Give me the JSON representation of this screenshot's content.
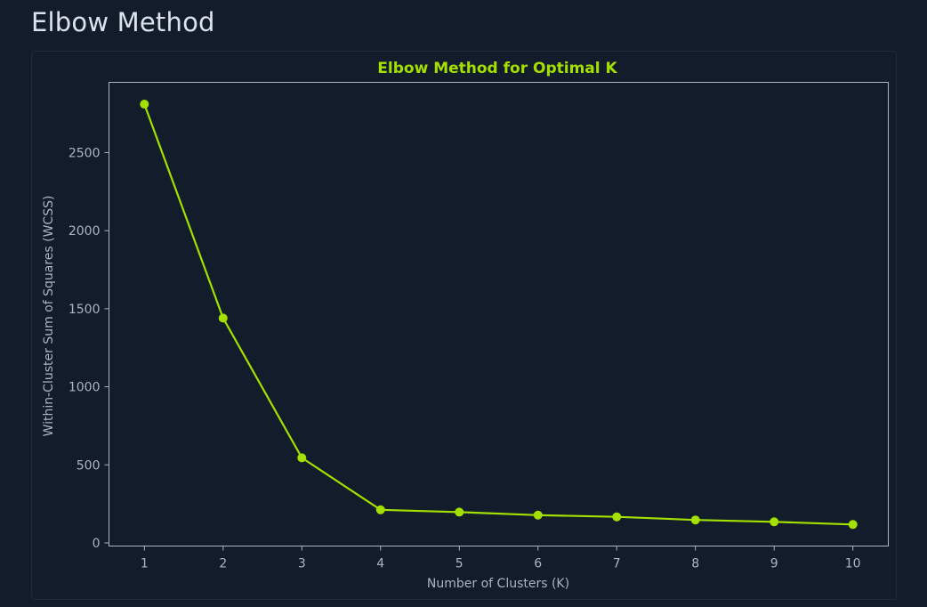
{
  "page": {
    "heading": "Elbow Method"
  },
  "colors": {
    "accent": "#a3e000",
    "axis": "#a9b4c4",
    "background": "#131c2a"
  },
  "chart_data": {
    "type": "line",
    "title": "Elbow Method for Optimal K",
    "xlabel": "Number of Clusters (K)",
    "ylabel": "Within-Cluster Sum of Squares (WCSS)",
    "x": [
      1,
      2,
      3,
      4,
      5,
      6,
      7,
      8,
      9,
      10
    ],
    "series": [
      {
        "values": [
          2810,
          1440,
          545,
          212,
          197,
          178,
          167,
          147,
          135,
          118
        ]
      }
    ],
    "xlim": [
      0.55,
      10.45
    ],
    "ylim": [
      -20,
      2950
    ],
    "xticks": [
      1,
      2,
      3,
      4,
      5,
      6,
      7,
      8,
      9,
      10
    ],
    "yticks": [
      0,
      500,
      1000,
      1500,
      2000,
      2500
    ],
    "grid": false,
    "markers": "circle"
  }
}
